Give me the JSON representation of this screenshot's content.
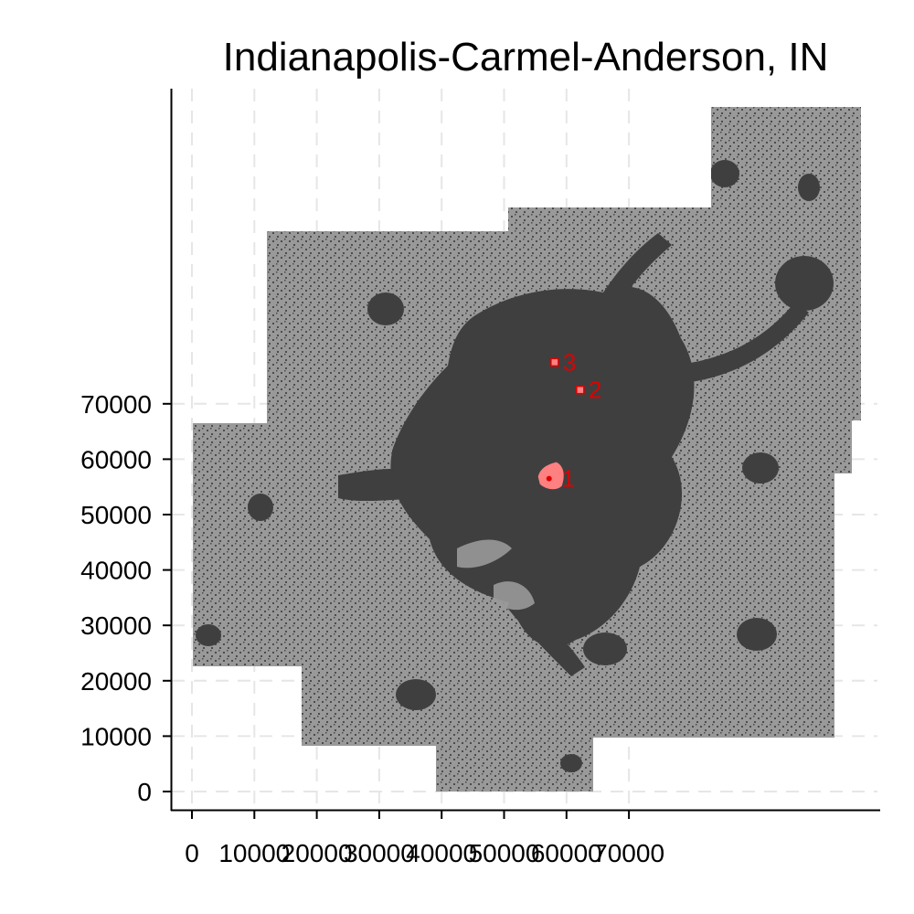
{
  "title": "Indianapolis-Carmel-Anderson, IN",
  "chart_data": {
    "type": "map",
    "title": "Indianapolis-Carmel-Anderson, IN",
    "x_ticks": [
      0,
      10000,
      20000,
      30000,
      40000,
      50000,
      60000,
      70000
    ],
    "y_ticks": [
      0,
      10000,
      20000,
      30000,
      40000,
      50000,
      60000,
      70000
    ],
    "grid": true,
    "colors": {
      "region_fill": "#999999",
      "density_fill": "#3f3f3f",
      "highlight": "#ff8080",
      "marker_label": "#e00000"
    },
    "markers": [
      {
        "label": "1",
        "x": 57500,
        "y": 56500
      },
      {
        "label": "2",
        "x": 62200,
        "y": 72500
      },
      {
        "label": "3",
        "x": 58100,
        "y": 77500
      }
    ]
  }
}
